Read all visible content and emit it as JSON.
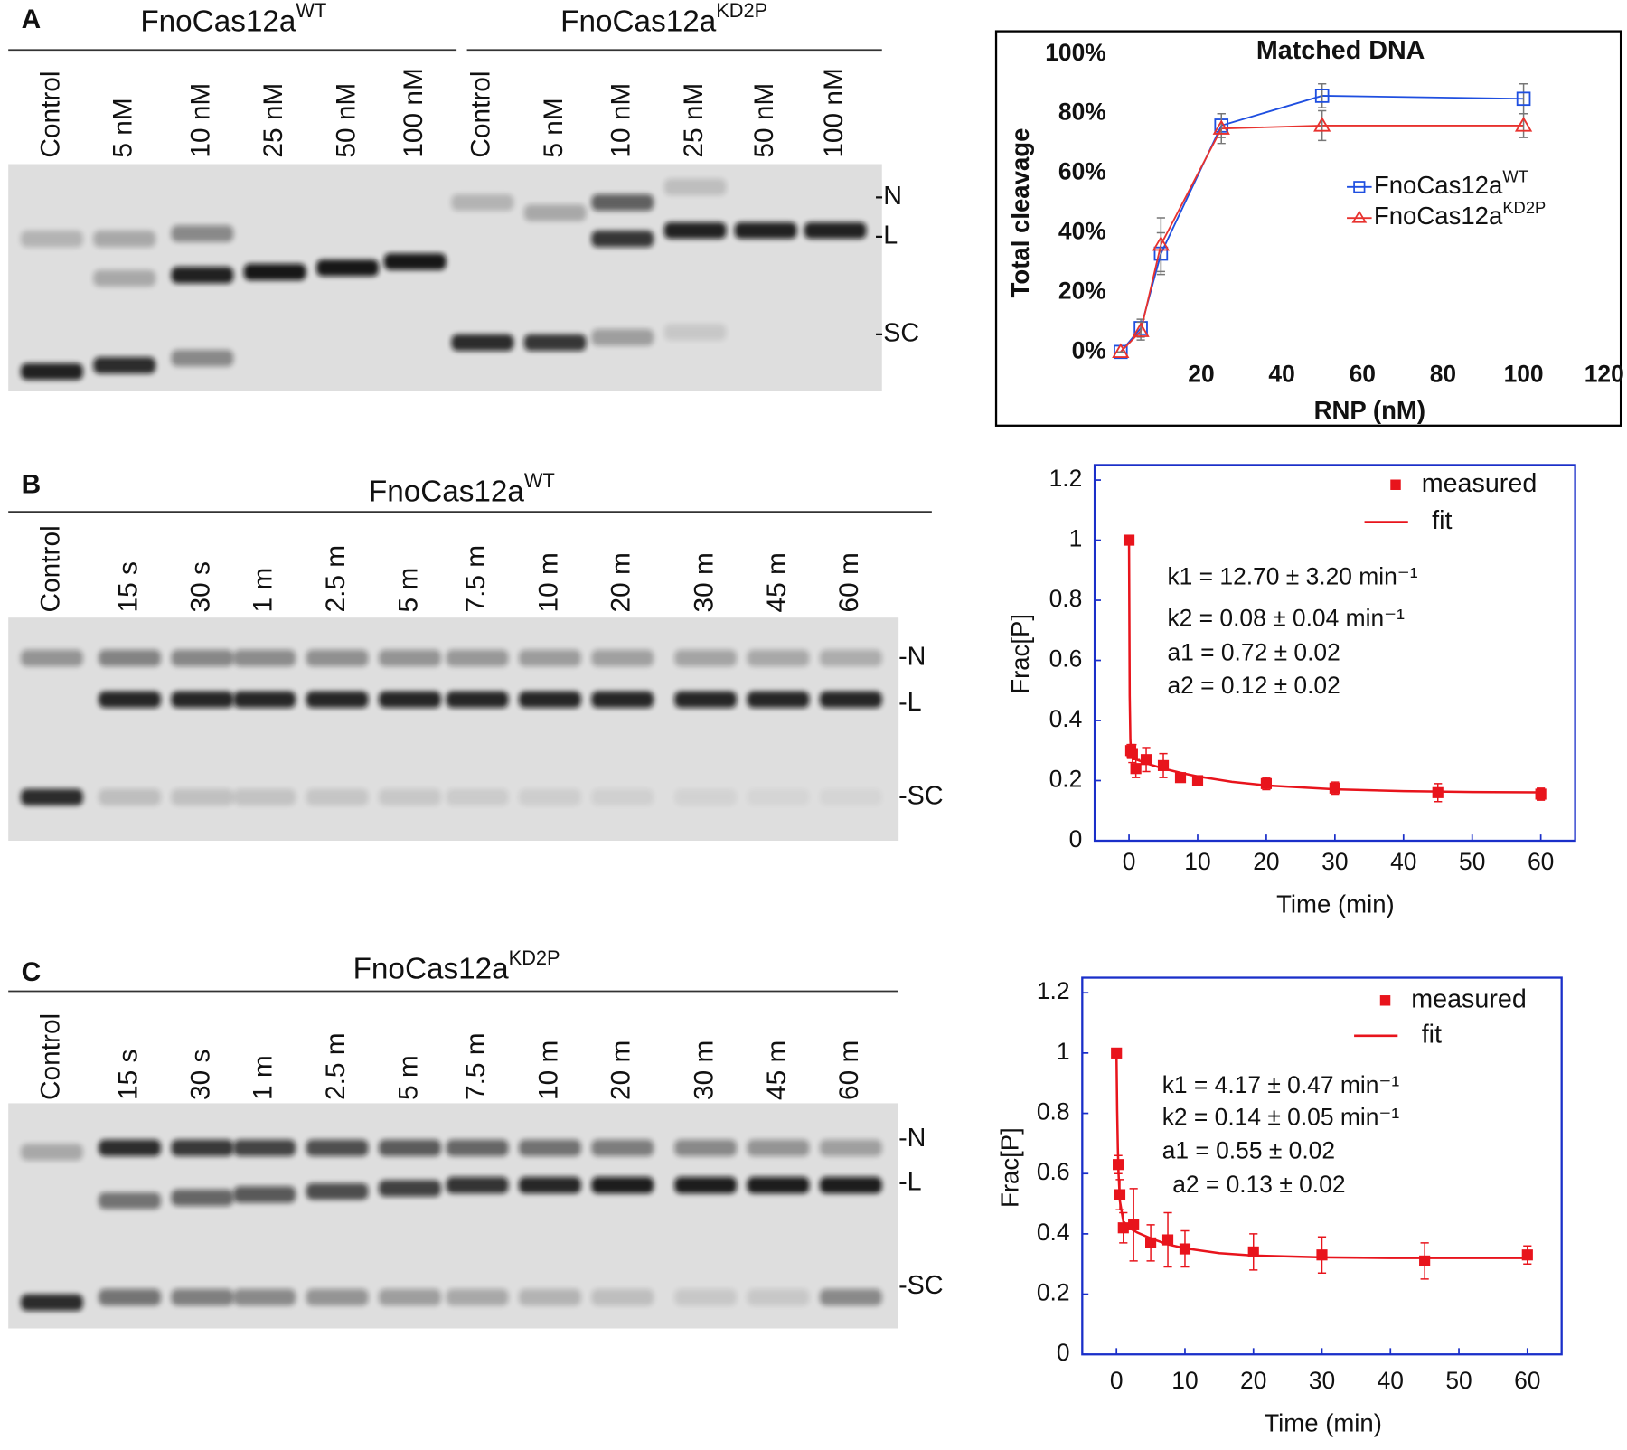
{
  "panels": [
    {
      "label": "A",
      "groups": [
        {
          "title": "FnoCas12a",
          "title_sup": "WT",
          "lanes": [
            "Control",
            "5 nM",
            "10 nM",
            "25 nM",
            "50 nM",
            "100 nM"
          ]
        },
        {
          "title": "FnoCas12a",
          "title_sup": "KD2P",
          "lanes": [
            "Control",
            "5 nM",
            "10 nM",
            "25 nM",
            "50 nM",
            "100 nM"
          ]
        }
      ],
      "bands": [
        "-N",
        "-L",
        "-SC"
      ]
    },
    {
      "label": "B",
      "groups": [
        {
          "title": "FnoCas12a",
          "title_sup": "WT",
          "lanes": [
            "Control",
            "15 s",
            "30 s",
            "1 m",
            "2.5 m",
            "5 m",
            "7.5 m",
            "10 m",
            "20 m",
            "30 m",
            "45 m",
            "60 m"
          ]
        }
      ],
      "bands": [
        "-N",
        "-L",
        "-SC"
      ]
    },
    {
      "label": "C",
      "groups": [
        {
          "title": "FnoCas12a",
          "title_sup": "KD2P",
          "lanes": [
            "Control",
            "15 s",
            "30 s",
            "1 m",
            "2.5 m",
            "5 m",
            "7.5 m",
            "10 m",
            "20 m",
            "30 m",
            "45 m",
            "60 m"
          ]
        }
      ],
      "bands": [
        "-N",
        "-L",
        "-SC"
      ]
    }
  ],
  "chart_data": [
    {
      "type": "line",
      "title": "Matched DNA",
      "x_label": "RNP (nM)",
      "y_label": "Total cleavage",
      "x": [
        0,
        5,
        10,
        25,
        50,
        100
      ],
      "series": [
        {
          "name": "FnoCas12a",
          "name_sup": "WT",
          "color": "#1f4fe0",
          "marker": "square",
          "values": [
            0,
            8,
            33,
            76,
            86,
            85
          ],
          "errors": [
            0,
            3,
            7,
            4,
            4,
            5
          ]
        },
        {
          "name": "FnoCas12a",
          "name_sup": "KD2P",
          "color": "#e8322e",
          "marker": "triangle",
          "values": [
            0,
            7,
            36,
            75,
            76,
            76
          ],
          "errors": [
            0,
            3,
            9,
            5,
            5,
            4
          ]
        }
      ],
      "error_color": "#777777",
      "xlim": [
        0,
        120
      ],
      "xticks": [
        20,
        40,
        60,
        80,
        100,
        120
      ],
      "ylim": [
        0,
        100
      ],
      "yticks": [
        {
          "value": 0,
          "label": "0%"
        },
        {
          "value": 20,
          "label": "20%"
        },
        {
          "value": 40,
          "label": "40%"
        },
        {
          "value": 60,
          "label": "60%"
        },
        {
          "value": 80,
          "label": "80%"
        },
        {
          "value": 100,
          "label": "100%"
        }
      ],
      "frame_color": "#000000"
    },
    {
      "type": "scatter",
      "x_label": "Time  (min)",
      "y_label": "Frac[P]",
      "series": [
        {
          "name": "measured",
          "color": "#e8141c",
          "style": "markers",
          "x": [
            0,
            0.25,
            0.5,
            1,
            2.5,
            5,
            7.5,
            10,
            20,
            30,
            45,
            60
          ],
          "values": [
            1,
            0.3,
            0.29,
            0.24,
            0.27,
            0.25,
            0.21,
            0.2,
            0.19,
            0.175,
            0.16,
            0.155
          ],
          "errors": [
            0,
            0.02,
            0.03,
            0.03,
            0.04,
            0.04,
            0.01,
            0.01,
            0.02,
            0.02,
            0.03,
            0.02
          ]
        },
        {
          "name": "fit",
          "color": "#e8141c",
          "style": "line",
          "x": [
            0,
            0.1,
            0.2,
            0.3,
            0.5,
            1,
            2,
            3,
            5,
            7.5,
            10,
            15,
            20,
            30,
            40,
            50,
            60
          ],
          "values": [
            1,
            0.481,
            0.335,
            0.293,
            0.276,
            0.271,
            0.262,
            0.254,
            0.24,
            0.226,
            0.214,
            0.196,
            0.184,
            0.171,
            0.165,
            0.162,
            0.161
          ]
        }
      ],
      "annotations": [
        "k1 = 12.70 ± 3.20 min⁻¹",
        "k2 = 0.08 ± 0.04 min⁻¹",
        "a1 = 0.72 ± 0.02",
        "a2 = 0.12 ± 0.02"
      ],
      "xlim": [
        -5,
        65
      ],
      "xticks": [
        0,
        10,
        20,
        30,
        40,
        50,
        60
      ],
      "ylim": [
        0,
        1.25
      ],
      "yticks": [
        0,
        0.2,
        0.4,
        0.6,
        0.8,
        1,
        1.2
      ],
      "frame_color": "#1a2fc9"
    },
    {
      "type": "scatter",
      "x_label": "Time  (min)",
      "y_label": "Frac[P]",
      "series": [
        {
          "name": "measured",
          "color": "#e8141c",
          "style": "markers",
          "x": [
            0,
            0.25,
            0.5,
            1,
            2.5,
            5,
            7.5,
            10,
            20,
            30,
            45,
            60
          ],
          "values": [
            1,
            0.63,
            0.53,
            0.42,
            0.43,
            0.37,
            0.38,
            0.35,
            0.34,
            0.33,
            0.31,
            0.33
          ],
          "errors": [
            0,
            0.03,
            0.05,
            0.05,
            0.12,
            0.06,
            0.09,
            0.06,
            0.06,
            0.06,
            0.06,
            0.03
          ]
        },
        {
          "name": "fit",
          "color": "#e8141c",
          "style": "line",
          "x": [
            0,
            0.1,
            0.2,
            0.3,
            0.5,
            1,
            2,
            3,
            5,
            7.5,
            10,
            15,
            20,
            30,
            40,
            50,
            60
          ],
          "values": [
            1,
            0.81,
            0.685,
            0.602,
            0.509,
            0.441,
            0.418,
            0.405,
            0.385,
            0.365,
            0.352,
            0.336,
            0.328,
            0.322,
            0.32,
            0.32,
            0.32
          ]
        }
      ],
      "annotations": [
        "k1 = 4.17 ± 0.47 min⁻¹",
        "k2 = 0.14 ± 0.05 min⁻¹",
        "a1 = 0.55 ± 0.02",
        "a2 = 0.13 ± 0.02"
      ],
      "xlim": [
        -5,
        65
      ],
      "xticks": [
        0,
        10,
        20,
        30,
        40,
        50,
        60
      ],
      "ylim": [
        0,
        1.25
      ],
      "yticks": [
        0,
        0.2,
        0.4,
        0.6,
        0.8,
        1,
        1.2
      ],
      "frame_color": "#1a2fc9"
    }
  ]
}
